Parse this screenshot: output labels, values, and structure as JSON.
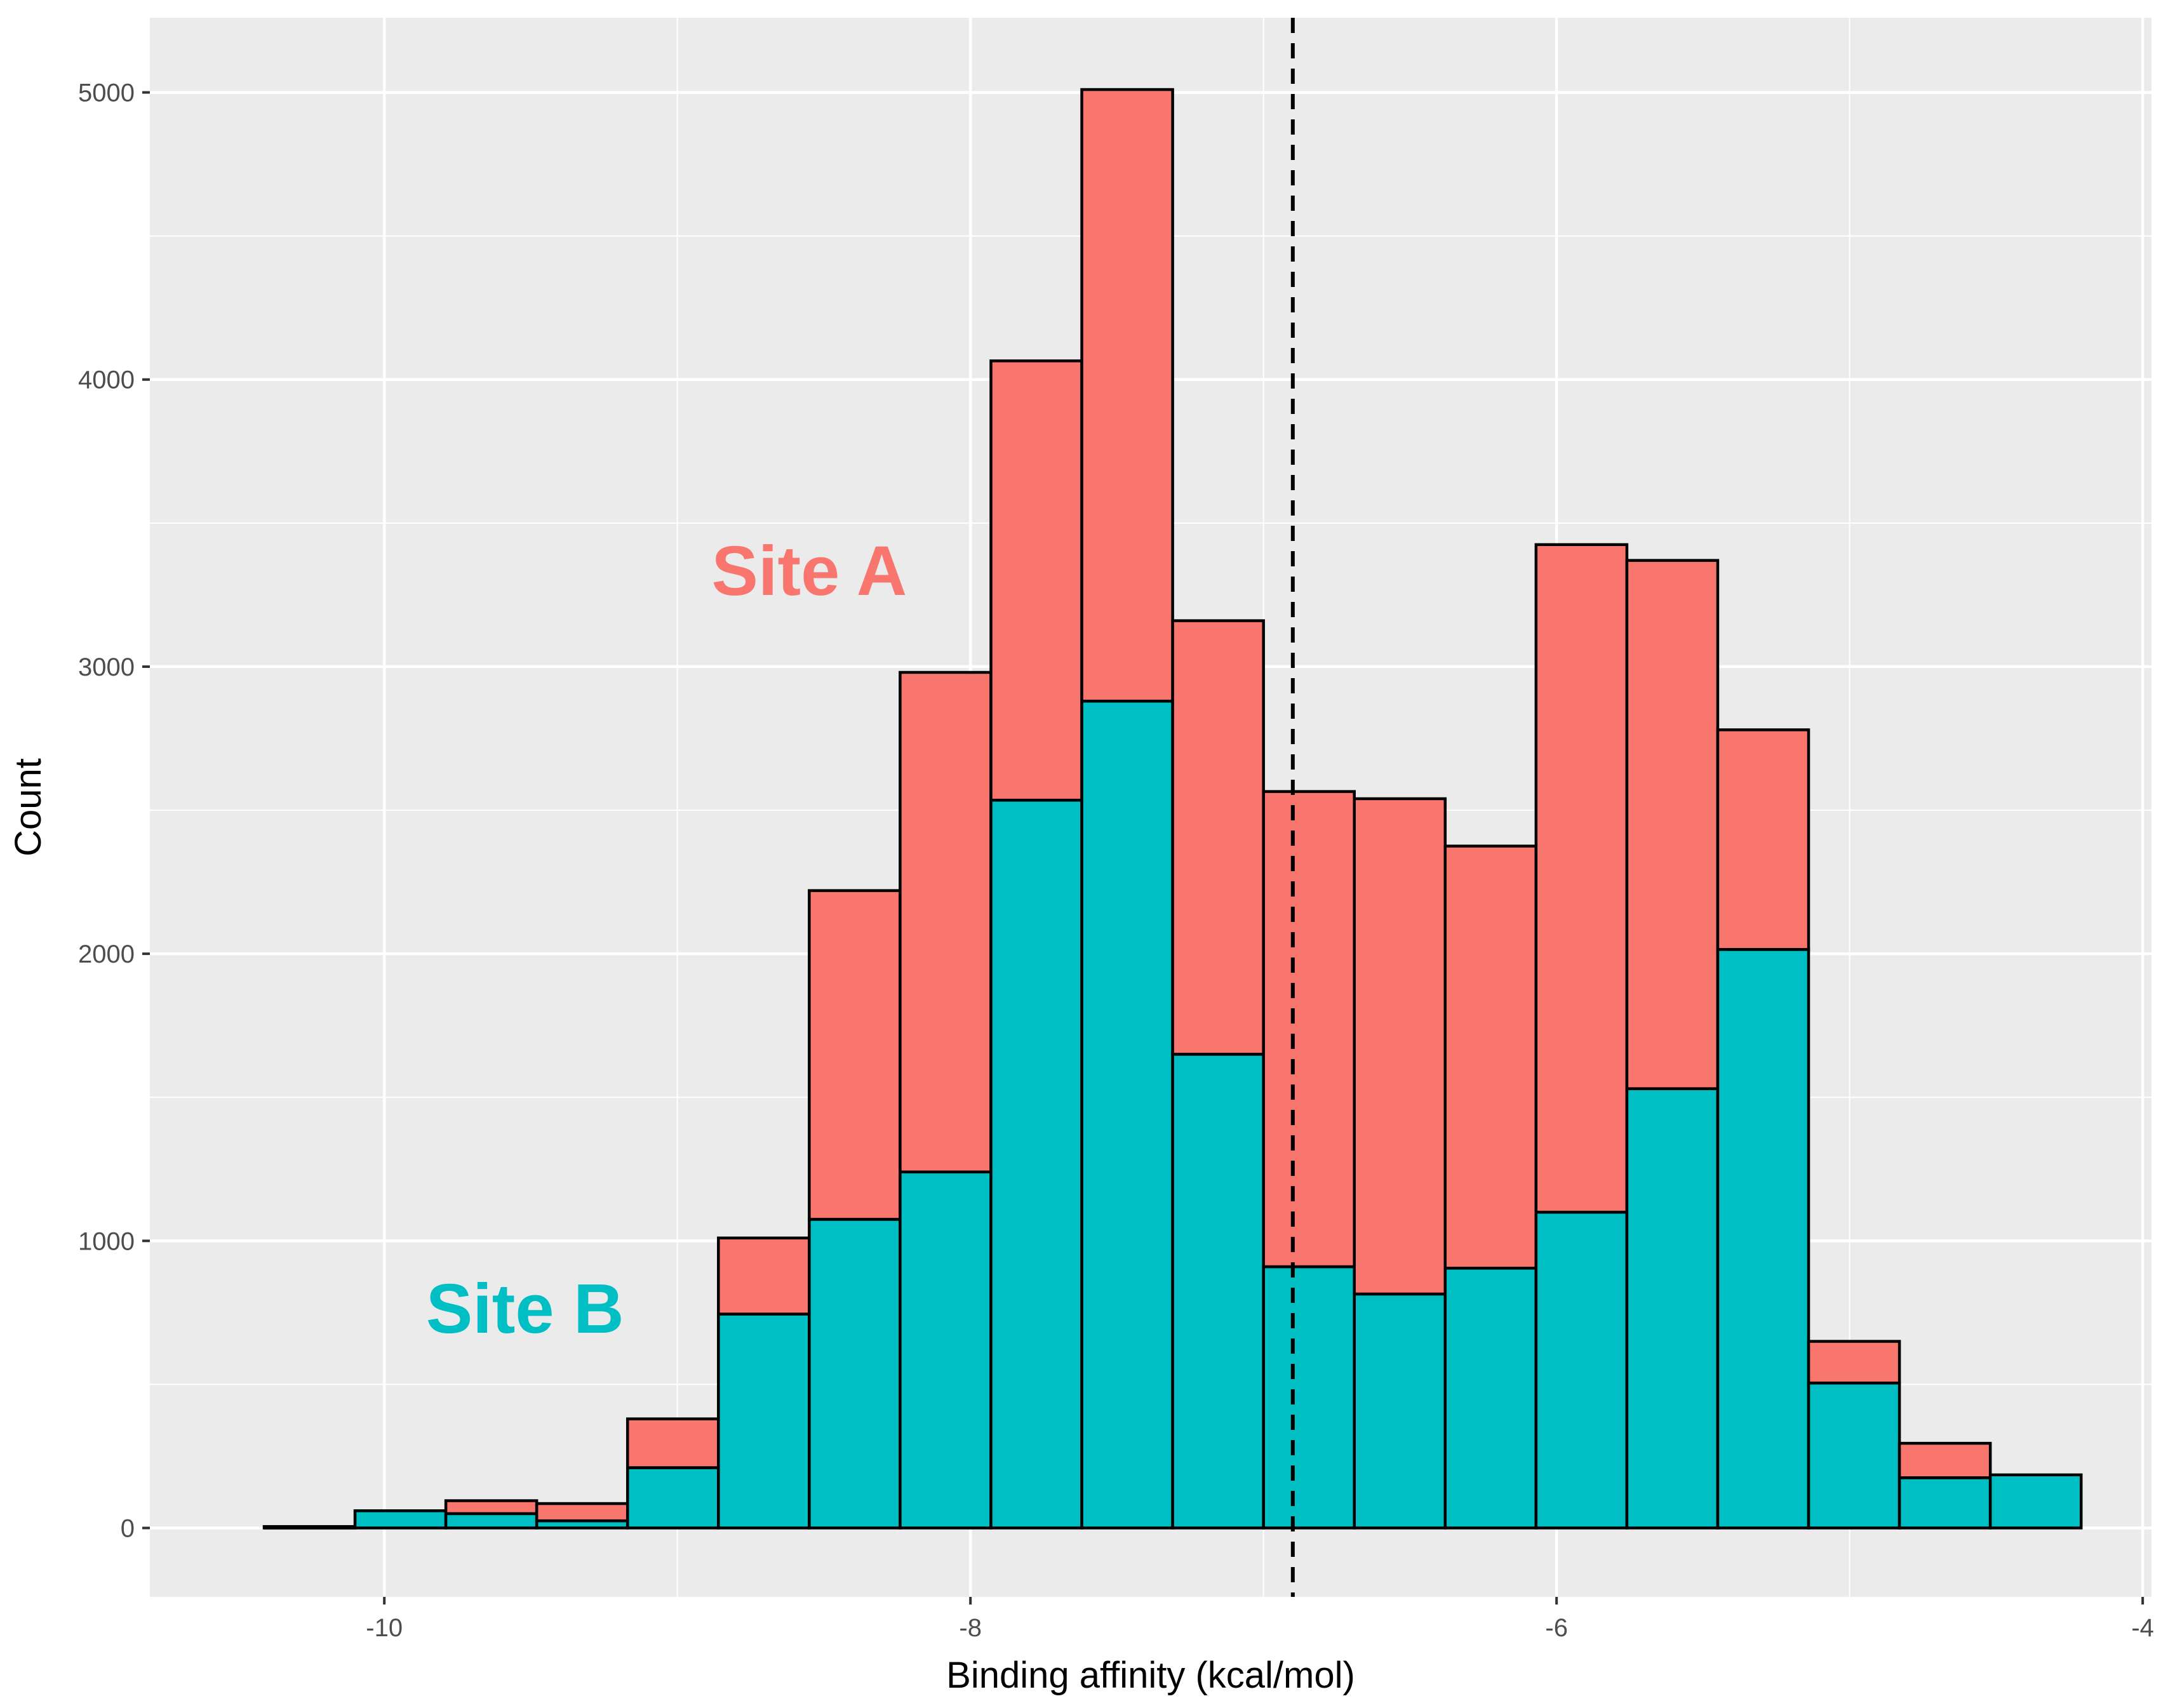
{
  "chart_data": {
    "type": "bar",
    "stacked": true,
    "histogram": true,
    "title": "",
    "xlabel": "Binding affinity (kcal/mol)",
    "ylabel": "Count",
    "xlim": [
      -10.8,
      -3.97
    ],
    "ylim": [
      -240,
      5260
    ],
    "x_ticks": [
      -10,
      -8,
      -6,
      -4
    ],
    "x_tick_labels": [
      "-10",
      "-8",
      "-6",
      "-4"
    ],
    "x_minor_ticks": [
      -9,
      -7,
      -5
    ],
    "y_ticks": [
      0,
      1000,
      2000,
      3000,
      4000,
      5000
    ],
    "y_tick_labels": [
      "0",
      "1000",
      "2000",
      "3000",
      "4000",
      "5000"
    ],
    "y_minor_ticks": [
      500,
      1500,
      2500,
      3500,
      4500
    ],
    "grid": true,
    "bin_edges": [
      -10.41,
      -10.1,
      -9.79,
      -9.48,
      -9.17,
      -8.86,
      -8.55,
      -8.24,
      -7.93,
      -7.62,
      -7.31,
      -7.0,
      -6.69,
      -6.38,
      -6.07,
      -5.76,
      -5.45,
      -5.14,
      -4.83,
      -4.52,
      -4.21
    ],
    "series": [
      {
        "name": "Site B",
        "color": "#00BFC4",
        "values": [
          5,
          60,
          50,
          25,
          210,
          745,
          1075,
          1240,
          2535,
          2880,
          1650,
          910,
          815,
          905,
          1100,
          1530,
          2015,
          505,
          175,
          185
        ]
      },
      {
        "name": "Site A",
        "color": "#F8766D",
        "values": [
          0,
          0,
          45,
          60,
          170,
          265,
          1145,
          1740,
          1530,
          2130,
          1510,
          1655,
          1725,
          1470,
          2325,
          1840,
          765,
          145,
          120,
          0
        ]
      }
    ],
    "reference_line": {
      "x": -6.9,
      "style": "dashed",
      "color": "#000000"
    },
    "annotations": [
      {
        "text": "Site A",
        "color": "#F8766D",
        "x": -8.55,
        "y": 3250
      },
      {
        "text": "Site B",
        "color": "#00BFC4",
        "x": -9.52,
        "y": 680
      }
    ],
    "colors": {
      "panel_background": "#EBEBEB",
      "grid": "#FFFFFF",
      "bar_outline": "#000000"
    }
  }
}
